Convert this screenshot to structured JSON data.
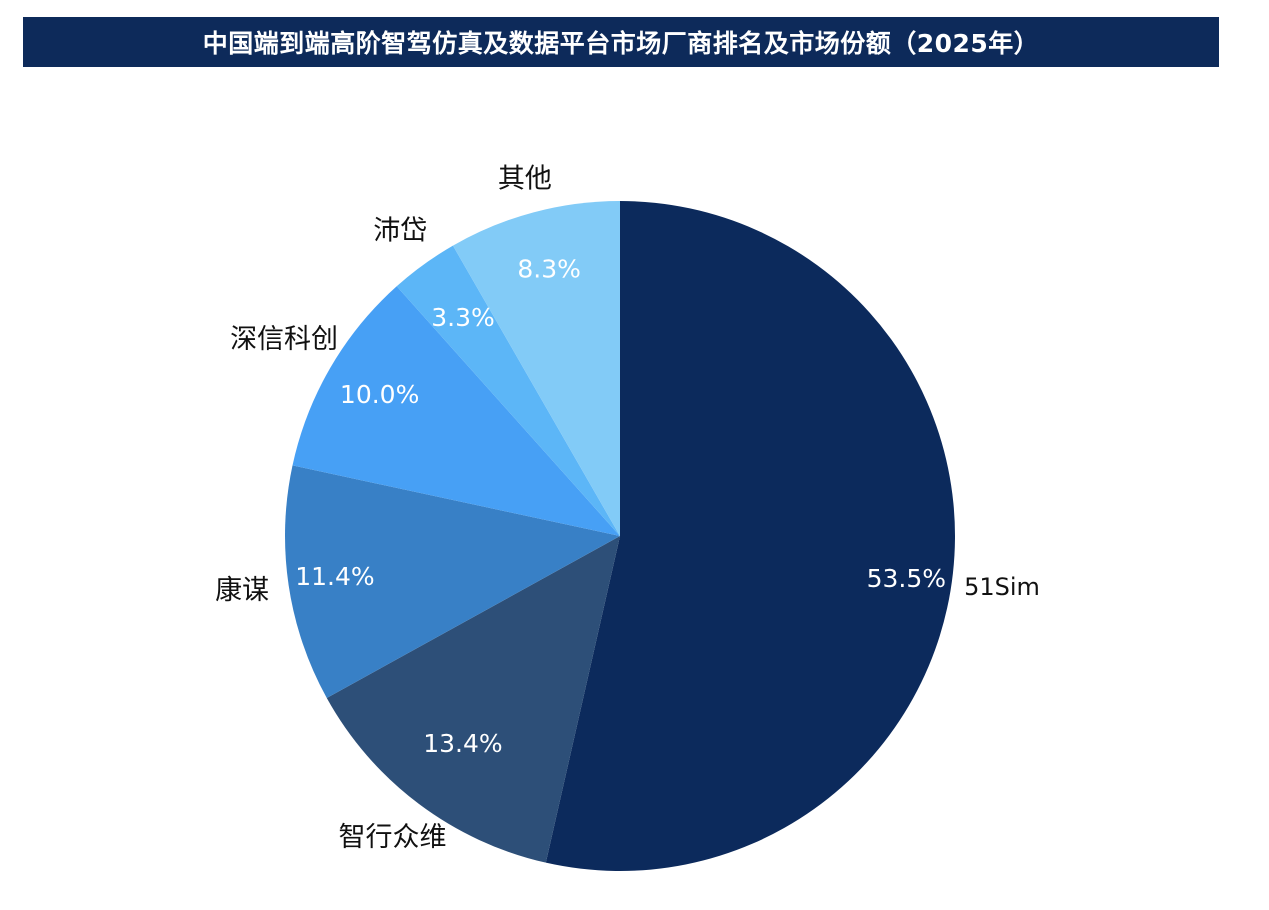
{
  "header": {
    "title": "中国端到端高阶智驾仿真及数据平台市场厂商排名及市场份额（2025年）"
  },
  "colors": {
    "title_bg": "#0d2a5a"
  },
  "chart_data": {
    "type": "pie",
    "title": "中国端到端高阶智驾仿真及数据平台市场厂商排名及市场份额（2025年）",
    "start_angle_deg": 0,
    "direction": "clockwise",
    "slices": [
      {
        "name": "51Sim",
        "value": 53.5,
        "label": "53.5%",
        "color": "#0c2a5c"
      },
      {
        "name": "智行众维",
        "value": 13.4,
        "label": "13.4%",
        "color": "#2d4f78"
      },
      {
        "name": "康谋",
        "value": 11.4,
        "label": "11.4%",
        "color": "#3880c6"
      },
      {
        "name": "深信科创",
        "value": 10.0,
        "label": "10.0%",
        "color": "#47a0f5"
      },
      {
        "name": "沛岱",
        "value": 3.3,
        "label": "3.3%",
        "color": "#5cb6f7"
      },
      {
        "name": "其他",
        "value": 8.3,
        "label": "8.3%",
        "color": "#82cbf7"
      }
    ],
    "legend": "none",
    "data_labels": "percent inside, category outside"
  }
}
